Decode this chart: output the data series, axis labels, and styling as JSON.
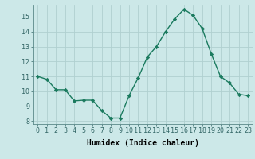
{
  "x": [
    0,
    1,
    2,
    3,
    4,
    5,
    6,
    7,
    8,
    9,
    10,
    11,
    12,
    13,
    14,
    15,
    16,
    17,
    18,
    19,
    20,
    21,
    22,
    23
  ],
  "y": [
    11.0,
    10.8,
    10.1,
    10.1,
    9.35,
    9.4,
    9.4,
    8.7,
    8.2,
    8.2,
    9.7,
    10.9,
    12.3,
    13.0,
    14.0,
    14.85,
    15.5,
    15.1,
    14.2,
    12.5,
    11.0,
    10.55,
    9.8,
    9.7
  ],
  "line_color": "#1a7a5e",
  "marker": "D",
  "marker_size": 2.2,
  "bg_color": "#cce8e8",
  "grid_color": "#b0d0d0",
  "xlabel": "Humidex (Indice chaleur)",
  "xlim": [
    -0.5,
    23.5
  ],
  "ylim": [
    7.8,
    15.8
  ],
  "yticks": [
    8,
    9,
    10,
    11,
    12,
    13,
    14,
    15
  ],
  "xticks": [
    0,
    1,
    2,
    3,
    4,
    5,
    6,
    7,
    8,
    9,
    10,
    11,
    12,
    13,
    14,
    15,
    16,
    17,
    18,
    19,
    20,
    21,
    22,
    23
  ],
  "xtick_labels": [
    "0",
    "1",
    "2",
    "3",
    "4",
    "5",
    "6",
    "7",
    "8",
    "9",
    "10",
    "11",
    "12",
    "13",
    "14",
    "15",
    "16",
    "17",
    "18",
    "19",
    "20",
    "21",
    "22",
    "23"
  ],
  "font_family": "monospace",
  "tick_fontsize": 6.0,
  "xlabel_fontsize": 7.0
}
